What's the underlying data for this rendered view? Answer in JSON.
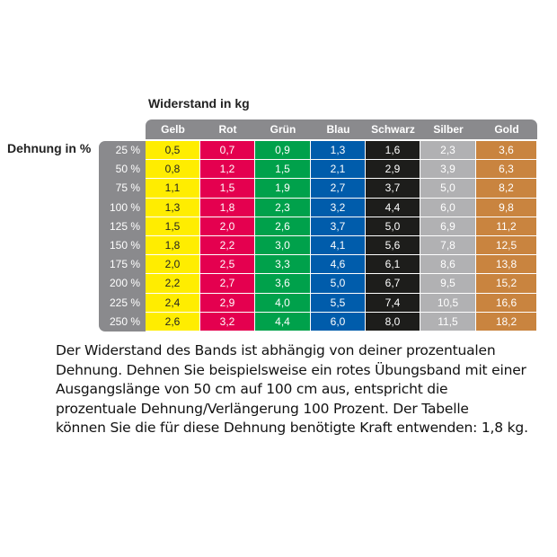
{
  "title": "Widerstand in kg",
  "row_header": "Dehnung in %",
  "columns": [
    {
      "name": "Gelb",
      "bg": "#ffed00",
      "fg": "#222"
    },
    {
      "name": "Rot",
      "bg": "#e4004f",
      "fg": "#fff"
    },
    {
      "name": "Grün",
      "bg": "#00a14b",
      "fg": "#fff"
    },
    {
      "name": "Blau",
      "bg": "#005cab",
      "fg": "#fff"
    },
    {
      "name": "Schwarz",
      "bg": "#1d1d1b",
      "fg": "#fff"
    },
    {
      "name": "Silber",
      "bg": "#b1b1b3",
      "fg": "#fff"
    },
    {
      "name": "Gold",
      "bg": "#c9843f",
      "fg": "#fff"
    }
  ],
  "rows": [
    {
      "label": "25 %",
      "values": [
        "0,5",
        "0,7",
        "0,9",
        "1,3",
        "1,6",
        "2,3",
        "3,6"
      ]
    },
    {
      "label": "50 %",
      "values": [
        "0,8",
        "1,2",
        "1,5",
        "2,1",
        "2,9",
        "3,9",
        "6,3"
      ]
    },
    {
      "label": "75 %",
      "values": [
        "1,1",
        "1,5",
        "1,9",
        "2,7",
        "3,7",
        "5,0",
        "8,2"
      ]
    },
    {
      "label": "100 %",
      "values": [
        "1,3",
        "1,8",
        "2,3",
        "3,2",
        "4,4",
        "6,0",
        "9,8"
      ]
    },
    {
      "label": "125 %",
      "values": [
        "1,5",
        "2,0",
        "2,6",
        "3,7",
        "5,0",
        "6,9",
        "11,2"
      ]
    },
    {
      "label": "150 %",
      "values": [
        "1,8",
        "2,2",
        "3,0",
        "4,1",
        "5,6",
        "7,8",
        "12,5"
      ]
    },
    {
      "label": "175 %",
      "values": [
        "2,0",
        "2,5",
        "3,3",
        "4,6",
        "6,1",
        "8,6",
        "13,8"
      ]
    },
    {
      "label": "200 %",
      "values": [
        "2,2",
        "2,7",
        "3,6",
        "5,0",
        "6,7",
        "9,5",
        "15,2"
      ]
    },
    {
      "label": "225 %",
      "values": [
        "2,4",
        "2,9",
        "4,0",
        "5,5",
        "7,4",
        "10,5",
        "16,6"
      ]
    },
    {
      "label": "250 %",
      "values": [
        "2,6",
        "3,2",
        "4,4",
        "6,0",
        "8,0",
        "11,5",
        "18,2"
      ]
    }
  ],
  "description_lines": [
    "Der Widerstand des Bands ist abhängig von deiner prozentualen",
    "Dehnung. Dehnen Sie beispielsweise ein rotes Übungsband mit einer",
    "Ausgangslänge von 50 cm auf 100 cm aus, entspricht die",
    "prozentuale Dehnung/Verlängerung 100 Prozent. Der Tabelle",
    "können Sie die für diese Dehnung benötigte Kraft entwenden: 1,8 kg."
  ]
}
